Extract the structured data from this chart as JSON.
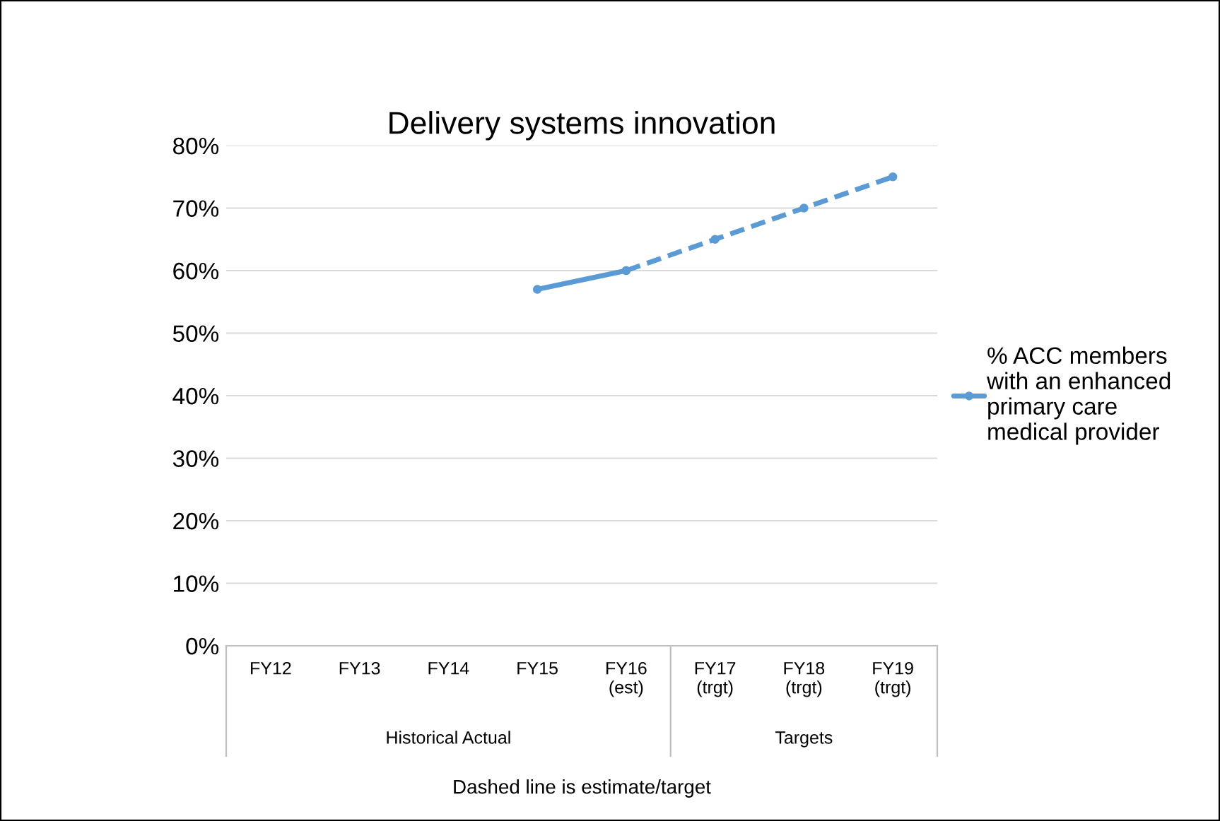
{
  "chart_data": {
    "type": "line",
    "title": "Delivery systems innovation",
    "xlabel": "Dashed line is estimate/target",
    "categories": [
      "FY12",
      "FY13",
      "FY14",
      "FY15",
      "FY16\n(est)",
      "FY17\n(trgt)",
      "FY18\n(trgt)",
      "FY19\n(trgt)"
    ],
    "series": [
      {
        "name": "% ACC members\nwith an enhanced\nprimary care\nmedical provider",
        "color": "#5b9bd5",
        "line_style": "solid",
        "values": [
          null,
          null,
          null,
          57,
          60,
          null,
          null,
          null
        ]
      },
      {
        "color": "#5b9bd5",
        "line_style": "dashed",
        "values": [
          null,
          null,
          null,
          null,
          60,
          65,
          70,
          75
        ]
      }
    ],
    "annotations": [
      "Historical Actual",
      "Targets"
    ],
    "ylim": [
      0,
      80
    ],
    "yticks": [
      {
        "value": 0,
        "label": "0%"
      },
      {
        "value": 10,
        "label": "10%"
      },
      {
        "value": 20,
        "label": "20%"
      },
      {
        "value": 30,
        "label": "30%"
      },
      {
        "value": 40,
        "label": "40%"
      },
      {
        "value": 50,
        "label": "50%"
      },
      {
        "value": 60,
        "label": "60%"
      },
      {
        "value": 70,
        "label": "70%"
      },
      {
        "value": 80,
        "label": "80%"
      }
    ],
    "grid": "y",
    "legend": "right",
    "marker": "circle"
  }
}
